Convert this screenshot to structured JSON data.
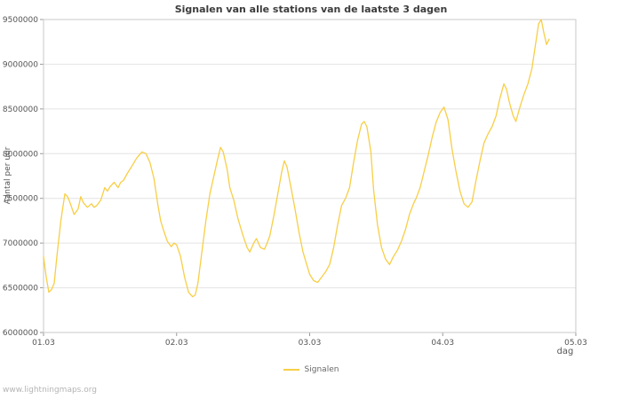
{
  "watermark": "www.lightningmaps.org",
  "chart_data": {
    "type": "line",
    "title": "Signalen van alle stations van de laatste 3 dagen",
    "xlabel": "dag",
    "ylabel": "Aantal per uur",
    "legend": {
      "label": "Signalen",
      "position": "bottom-center"
    },
    "line_color": "#f8ce46",
    "grid": "horizontal",
    "xlim": [
      1.0,
      5.0
    ],
    "ylim_millions": [
      6.0,
      9.5
    ],
    "y_ticks": [
      {
        "v": 6.0,
        "label": "6000000"
      },
      {
        "v": 6.5,
        "label": "6500000"
      },
      {
        "v": 7.0,
        "label": "7000000"
      },
      {
        "v": 7.5,
        "label": "7500000"
      },
      {
        "v": 8.0,
        "label": "8000000"
      },
      {
        "v": 8.5,
        "label": "8500000"
      },
      {
        "v": 9.0,
        "label": "9000000"
      },
      {
        "v": 9.5,
        "label": "9500000"
      }
    ],
    "x_ticks": [
      {
        "v": 1,
        "label": "01.03"
      },
      {
        "v": 2,
        "label": "02.03"
      },
      {
        "v": 3,
        "label": "03.03"
      },
      {
        "v": 4,
        "label": "04.03"
      },
      {
        "v": 5,
        "label": "05.03"
      }
    ],
    "points_units": "x in days (01.03 = 1), y in millions of signals per hour",
    "points": [
      [
        1.0,
        6.85
      ],
      [
        1.02,
        6.62
      ],
      [
        1.04,
        6.45
      ],
      [
        1.06,
        6.48
      ],
      [
        1.08,
        6.55
      ],
      [
        1.1,
        6.85
      ],
      [
        1.13,
        7.25
      ],
      [
        1.16,
        7.55
      ],
      [
        1.18,
        7.52
      ],
      [
        1.2,
        7.45
      ],
      [
        1.23,
        7.32
      ],
      [
        1.26,
        7.38
      ],
      [
        1.28,
        7.52
      ],
      [
        1.3,
        7.45
      ],
      [
        1.33,
        7.4
      ],
      [
        1.36,
        7.44
      ],
      [
        1.38,
        7.4
      ],
      [
        1.4,
        7.42
      ],
      [
        1.43,
        7.48
      ],
      [
        1.46,
        7.62
      ],
      [
        1.48,
        7.58
      ],
      [
        1.5,
        7.63
      ],
      [
        1.53,
        7.68
      ],
      [
        1.56,
        7.62
      ],
      [
        1.58,
        7.68
      ],
      [
        1.6,
        7.7
      ],
      [
        1.63,
        7.78
      ],
      [
        1.66,
        7.85
      ],
      [
        1.7,
        7.95
      ],
      [
        1.74,
        8.02
      ],
      [
        1.77,
        8.0
      ],
      [
        1.8,
        7.9
      ],
      [
        1.83,
        7.72
      ],
      [
        1.86,
        7.42
      ],
      [
        1.88,
        7.25
      ],
      [
        1.9,
        7.15
      ],
      [
        1.93,
        7.02
      ],
      [
        1.96,
        6.96
      ],
      [
        1.98,
        7.0
      ],
      [
        2.0,
        6.98
      ],
      [
        2.03,
        6.85
      ],
      [
        2.06,
        6.62
      ],
      [
        2.09,
        6.45
      ],
      [
        2.12,
        6.4
      ],
      [
        2.14,
        6.42
      ],
      [
        2.16,
        6.55
      ],
      [
        2.19,
        6.9
      ],
      [
        2.22,
        7.25
      ],
      [
        2.25,
        7.55
      ],
      [
        2.28,
        7.75
      ],
      [
        2.31,
        7.95
      ],
      [
        2.33,
        8.07
      ],
      [
        2.35,
        8.02
      ],
      [
        2.38,
        7.82
      ],
      [
        2.4,
        7.62
      ],
      [
        2.43,
        7.48
      ],
      [
        2.46,
        7.28
      ],
      [
        2.48,
        7.18
      ],
      [
        2.5,
        7.08
      ],
      [
        2.53,
        6.95
      ],
      [
        2.55,
        6.9
      ],
      [
        2.58,
        7.0
      ],
      [
        2.6,
        7.05
      ],
      [
        2.63,
        6.95
      ],
      [
        2.66,
        6.93
      ],
      [
        2.68,
        7.0
      ],
      [
        2.7,
        7.08
      ],
      [
        2.73,
        7.3
      ],
      [
        2.76,
        7.55
      ],
      [
        2.79,
        7.8
      ],
      [
        2.81,
        7.92
      ],
      [
        2.83,
        7.85
      ],
      [
        2.86,
        7.62
      ],
      [
        2.89,
        7.38
      ],
      [
        2.92,
        7.12
      ],
      [
        2.95,
        6.9
      ],
      [
        2.98,
        6.75
      ],
      [
        3.0,
        6.65
      ],
      [
        3.03,
        6.58
      ],
      [
        3.06,
        6.56
      ],
      [
        3.09,
        6.62
      ],
      [
        3.12,
        6.68
      ],
      [
        3.15,
        6.76
      ],
      [
        3.18,
        6.95
      ],
      [
        3.21,
        7.2
      ],
      [
        3.24,
        7.42
      ],
      [
        3.27,
        7.5
      ],
      [
        3.3,
        7.62
      ],
      [
        3.33,
        7.9
      ],
      [
        3.36,
        8.15
      ],
      [
        3.39,
        8.33
      ],
      [
        3.41,
        8.36
      ],
      [
        3.43,
        8.3
      ],
      [
        3.46,
        8.02
      ],
      [
        3.48,
        7.6
      ],
      [
        3.51,
        7.2
      ],
      [
        3.54,
        6.95
      ],
      [
        3.57,
        6.82
      ],
      [
        3.6,
        6.76
      ],
      [
        3.63,
        6.85
      ],
      [
        3.66,
        6.92
      ],
      [
        3.69,
        7.02
      ],
      [
        3.72,
        7.15
      ],
      [
        3.75,
        7.32
      ],
      [
        3.78,
        7.44
      ],
      [
        3.8,
        7.5
      ],
      [
        3.83,
        7.62
      ],
      [
        3.86,
        7.8
      ],
      [
        3.89,
        7.98
      ],
      [
        3.92,
        8.18
      ],
      [
        3.95,
        8.35
      ],
      [
        3.98,
        8.46
      ],
      [
        4.01,
        8.52
      ],
      [
        4.04,
        8.38
      ],
      [
        4.07,
        8.05
      ],
      [
        4.1,
        7.8
      ],
      [
        4.13,
        7.58
      ],
      [
        4.16,
        7.44
      ],
      [
        4.19,
        7.4
      ],
      [
        4.22,
        7.46
      ],
      [
        4.25,
        7.7
      ],
      [
        4.28,
        7.92
      ],
      [
        4.31,
        8.12
      ],
      [
        4.34,
        8.22
      ],
      [
        4.37,
        8.3
      ],
      [
        4.4,
        8.42
      ],
      [
        4.43,
        8.62
      ],
      [
        4.46,
        8.78
      ],
      [
        4.48,
        8.72
      ],
      [
        4.5,
        8.58
      ],
      [
        4.53,
        8.42
      ],
      [
        4.55,
        8.36
      ],
      [
        4.58,
        8.52
      ],
      [
        4.61,
        8.66
      ],
      [
        4.64,
        8.78
      ],
      [
        4.67,
        8.95
      ],
      [
        4.7,
        9.25
      ],
      [
        4.72,
        9.45
      ],
      [
        4.74,
        9.5
      ],
      [
        4.76,
        9.35
      ],
      [
        4.78,
        9.22
      ],
      [
        4.8,
        9.28
      ]
    ]
  }
}
